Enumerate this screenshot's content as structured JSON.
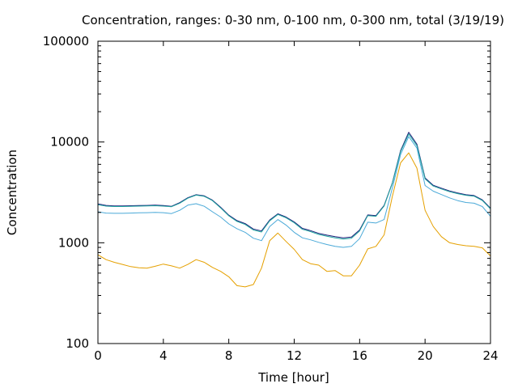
{
  "chart_data": {
    "type": "line",
    "title": "Concentration, ranges: 0-30 nm, 0-100 nm, 0-300 nm, total (3/19/19)",
    "xlabel": "Time [hour]",
    "ylabel": "Concentration",
    "xlim": [
      0,
      24
    ],
    "ylim": [
      100,
      100000
    ],
    "yscale": "log",
    "xticks": [
      0,
      4,
      8,
      12,
      16,
      20,
      24
    ],
    "yticks": [
      100,
      1000,
      10000,
      100000
    ],
    "xtick_labels": [
      "0",
      "4",
      "8",
      "12",
      "16",
      "20",
      "24"
    ],
    "ytick_labels": [
      "100",
      "1000",
      "10000",
      "100000"
    ],
    "grid": false,
    "legend": "none",
    "x": [
      0,
      0.5,
      1,
      1.5,
      2,
      2.5,
      3,
      3.5,
      4,
      4.5,
      5,
      5.5,
      6,
      6.5,
      7,
      7.5,
      8,
      8.5,
      9,
      9.5,
      10,
      10.5,
      11,
      11.5,
      12,
      12.5,
      13,
      13.5,
      14,
      14.5,
      15,
      15.5,
      16,
      16.5,
      17,
      17.5,
      18,
      18.5,
      19,
      19.5,
      20,
      20.5,
      21,
      21.5,
      22,
      22.5,
      23,
      23.5,
      24
    ],
    "series": [
      {
        "color": "#1f1f7a",
        "values": [
          2430,
          2350,
          2320,
          2320,
          2330,
          2340,
          2350,
          2360,
          2340,
          2300,
          2500,
          2800,
          3000,
          2920,
          2650,
          2250,
          1880,
          1660,
          1550,
          1370,
          1310,
          1680,
          1940,
          1800,
          1610,
          1390,
          1320,
          1240,
          1190,
          1150,
          1120,
          1140,
          1340,
          1890,
          1860,
          2350,
          3950,
          8200,
          12500,
          9500,
          4400,
          3720,
          3480,
          3270,
          3120,
          3000,
          2940,
          2670,
          2200
        ]
      },
      {
        "color": "#20a7a0",
        "values": [
          2390,
          2310,
          2290,
          2290,
          2300,
          2310,
          2320,
          2330,
          2310,
          2280,
          2470,
          2770,
          2970,
          2890,
          2620,
          2220,
          1850,
          1630,
          1520,
          1340,
          1280,
          1650,
          1910,
          1770,
          1580,
          1360,
          1290,
          1210,
          1160,
          1120,
          1090,
          1110,
          1310,
          1860,
          1830,
          2320,
          3900,
          8000,
          12000,
          9200,
          4300,
          3650,
          3420,
          3210,
          3070,
          2960,
          2900,
          2630,
          2170
        ]
      },
      {
        "color": "#4aa9d8",
        "values": [
          2030,
          1970,
          1960,
          1960,
          1970,
          1980,
          1990,
          2000,
          1990,
          1950,
          2100,
          2360,
          2440,
          2300,
          2030,
          1800,
          1540,
          1380,
          1270,
          1110,
          1050,
          1450,
          1700,
          1500,
          1270,
          1120,
          1070,
          1010,
          960,
          920,
          900,
          920,
          1100,
          1600,
          1570,
          1700,
          3500,
          7500,
          11300,
          8700,
          3700,
          3250,
          3010,
          2790,
          2620,
          2510,
          2470,
          2290,
          1830
        ]
      },
      {
        "color": "#e5a000",
        "values": [
          760,
          680,
          640,
          610,
          580,
          565,
          560,
          585,
          615,
          590,
          560,
          610,
          680,
          640,
          570,
          520,
          460,
          375,
          365,
          385,
          560,
          1050,
          1250,
          1030,
          860,
          680,
          620,
          600,
          520,
          530,
          470,
          470,
          600,
          870,
          920,
          1200,
          2900,
          6200,
          7800,
          5500,
          2100,
          1450,
          1150,
          1000,
          960,
          935,
          920,
          890,
          740
        ]
      }
    ]
  }
}
